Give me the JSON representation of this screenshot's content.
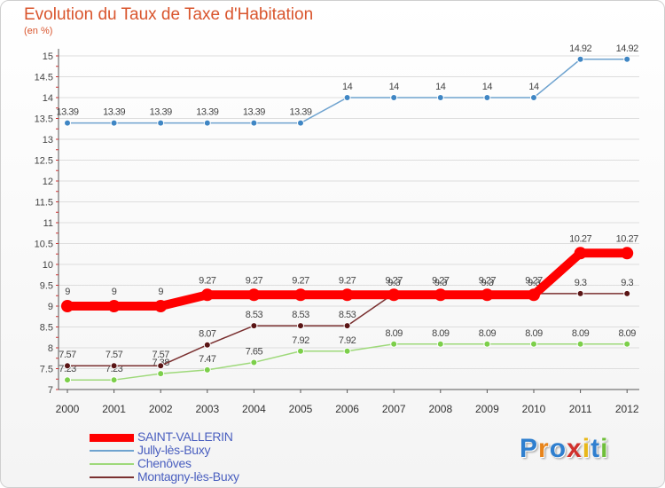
{
  "chart_data": {
    "type": "line",
    "title": "Evolution du Taux de Taxe d'Habitation",
    "ylabel": "(en %)",
    "xlabel": "",
    "ylim": [
      7,
      15
    ],
    "y_ticks": [
      "7",
      "7.5",
      "8",
      "8.5",
      "9",
      "9.5",
      "10",
      "10.5",
      "11",
      "11.5",
      "12",
      "12.5",
      "13",
      "13.5",
      "14",
      "14.5",
      "15"
    ],
    "x": [
      "2000",
      "2001",
      "2002",
      "2003",
      "2004",
      "2005",
      "2006",
      "2007",
      "2008",
      "2009",
      "2010",
      "2011",
      "2012"
    ],
    "series": [
      {
        "name": "SAINT-VALLERIN",
        "color": "#ff0000",
        "values": [
          9,
          9,
          9,
          9.27,
          9.27,
          9.27,
          9.27,
          9.27,
          9.27,
          9.27,
          9.27,
          10.27,
          10.27
        ],
        "labels": [
          "9",
          "9",
          "9",
          "9.27",
          "9.27",
          "9.27",
          "9.27",
          "9.27",
          "9.27",
          "9.27",
          "9.27",
          "10.27",
          "10.27"
        ]
      },
      {
        "name": "Jully-lès-Buxy",
        "color": "#6fa3cf",
        "values": [
          13.39,
          13.39,
          13.39,
          13.39,
          13.39,
          13.39,
          14,
          14,
          14,
          14,
          14,
          14.92,
          14.92
        ],
        "labels": [
          "13.39",
          "13.39",
          "13.39",
          "13.39",
          "13.39",
          "13.39",
          "14",
          "14",
          "14",
          "14",
          "14",
          "14.92",
          "14.92"
        ]
      },
      {
        "name": "Chenôves",
        "color": "#9ed97a",
        "values": [
          7.23,
          7.23,
          7.38,
          7.47,
          7.65,
          7.92,
          7.92,
          8.09,
          8.09,
          8.09,
          8.09,
          8.09,
          8.09
        ],
        "labels": [
          "7.23",
          "7.23",
          "7.38",
          "7.47",
          "7.65",
          "7.92",
          "7.92",
          "8.09",
          "8.09",
          "8.09",
          "8.09",
          "8.09",
          "8.09"
        ]
      },
      {
        "name": "Montagny-lès-Buxy",
        "color": "#7a3030",
        "values": [
          7.57,
          7.57,
          7.57,
          8.07,
          8.53,
          8.53,
          8.53,
          9.3,
          9.3,
          9.3,
          9.3,
          9.3,
          9.3
        ],
        "labels": [
          "7.57",
          "7.57",
          "7.57",
          "8.07",
          "8.53",
          "8.53",
          "8.53",
          "9.3",
          "9.3",
          "9.3",
          "9.3",
          "9.3",
          "9.3"
        ]
      }
    ]
  },
  "logo": {
    "letters": [
      "P",
      "r",
      "o",
      "x",
      "i",
      "t",
      "i"
    ],
    "colors": [
      "#2f7fcf",
      "#e8841a",
      "#2f7fcf",
      "#d0312d",
      "#e8b81a",
      "#2f7fcf",
      "#6fbf3a"
    ]
  }
}
